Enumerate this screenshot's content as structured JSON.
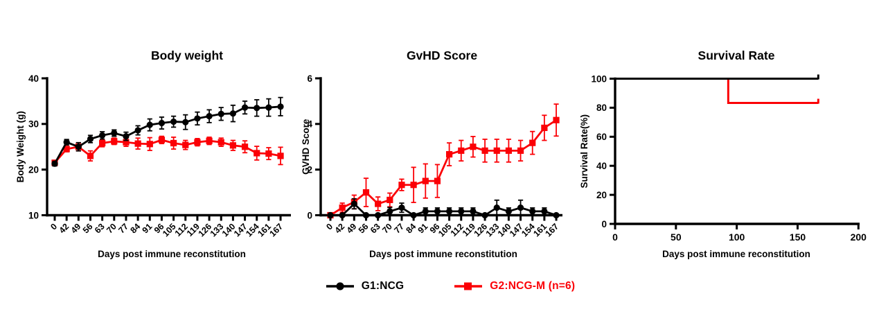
{
  "legend": {
    "items": [
      {
        "label": "G1:NCG",
        "color": "#000000",
        "marker": "circle"
      },
      {
        "label": "G2:NCG-M (n=6)",
        "color": "#fb0006",
        "marker": "square"
      }
    ]
  },
  "colors": {
    "black": "#000000",
    "red": "#fb0006",
    "background": "#ffffff"
  },
  "chart_data": [
    {
      "type": "line",
      "title": "Body weight",
      "xlabel": "Days post immune reconstitution",
      "ylabel": "Body Weight (g)",
      "ylim": [
        10,
        40
      ],
      "yticks": [
        10,
        20,
        30,
        40
      ],
      "grid": false,
      "categories": [
        0,
        42,
        49,
        56,
        63,
        70,
        77,
        84,
        91,
        96,
        105,
        112,
        119,
        126,
        133,
        140,
        147,
        154,
        161,
        167
      ],
      "series": [
        {
          "name": "G1:NCG",
          "color": "#000000",
          "marker": "circle",
          "values": [
            21.3,
            26.0,
            25.0,
            26.7,
            27.5,
            28.0,
            27.3,
            28.6,
            29.8,
            30.2,
            30.5,
            30.4,
            31.2,
            31.7,
            32.2,
            32.3,
            33.6,
            33.5,
            33.6,
            33.8
          ],
          "errors": [
            0.5,
            0.6,
            0.9,
            0.8,
            0.8,
            0.7,
            0.9,
            1.0,
            1.3,
            1.3,
            1.2,
            1.6,
            1.4,
            1.4,
            1.4,
            1.8,
            1.4,
            1.8,
            1.9,
            2.0
          ]
        },
        {
          "name": "G2:NCG-M (n=6)",
          "color": "#fb0006",
          "marker": "square",
          "values": [
            21.5,
            24.5,
            25.0,
            23.0,
            25.8,
            26.2,
            26.0,
            25.7,
            25.6,
            26.5,
            25.8,
            25.4,
            26.0,
            26.3,
            26.0,
            25.3,
            25.0,
            23.6,
            23.5,
            23.0
          ],
          "errors": [
            0.4,
            0.6,
            0.9,
            1.1,
            0.8,
            0.7,
            0.9,
            1.2,
            1.4,
            0.8,
            1.3,
            1.0,
            0.8,
            0.8,
            0.9,
            1.1,
            1.3,
            1.5,
            1.3,
            1.9
          ]
        }
      ]
    },
    {
      "type": "line",
      "title": "GvHD Score",
      "xlabel": "Days post immune reconstitution",
      "ylabel": "GVHD Score",
      "ylim": [
        0,
        6
      ],
      "yticks": [
        0,
        2,
        4,
        6
      ],
      "grid": false,
      "categories": [
        0,
        42,
        49,
        56,
        63,
        70,
        77,
        84,
        91,
        96,
        105,
        112,
        119,
        126,
        133,
        140,
        147,
        154,
        161,
        167
      ],
      "series": [
        {
          "name": "G1:NCG",
          "color": "#000000",
          "marker": "circle",
          "values": [
            0,
            0,
            0.5,
            0,
            0,
            0.17,
            0.33,
            0,
            0.17,
            0.17,
            0.17,
            0.17,
            0.17,
            0,
            0.33,
            0.17,
            0.33,
            0.17,
            0.17,
            0
          ],
          "errors": [
            0,
            0,
            0.22,
            0,
            0,
            0.17,
            0.2,
            0.05,
            0.15,
            0.15,
            0.15,
            0.15,
            0.15,
            0,
            0.33,
            0.15,
            0.33,
            0.15,
            0.15,
            0.05
          ]
        },
        {
          "name": "G2:NCG-M (n=6)",
          "color": "#fb0006",
          "marker": "square",
          "values": [
            0,
            0.33,
            0.58,
            1.0,
            0.5,
            0.67,
            1.33,
            1.33,
            1.5,
            1.5,
            2.67,
            2.83,
            3.0,
            2.83,
            2.83,
            2.83,
            2.83,
            3.17,
            3.83,
            4.17
          ],
          "errors": [
            0,
            0.2,
            0.3,
            0.62,
            0.3,
            0.3,
            0.25,
            0.77,
            0.75,
            0.72,
            0.5,
            0.45,
            0.45,
            0.5,
            0.5,
            0.5,
            0.45,
            0.5,
            0.55,
            0.7
          ]
        }
      ]
    },
    {
      "type": "step",
      "title": "Survival Rate",
      "xlabel": "Days post immune reconstitution",
      "ylabel": "Survival Rate(%)",
      "ylim": [
        0,
        100
      ],
      "yticks": [
        0,
        20,
        40,
        60,
        80,
        100
      ],
      "xlim": [
        0,
        200
      ],
      "xticks": [
        0,
        50,
        100,
        150,
        200
      ],
      "grid": false,
      "series": [
        {
          "name": "G1:NCG",
          "color": "#000000",
          "points": [
            [
              0,
              100
            ],
            [
              167,
              100
            ]
          ],
          "censor_at_end": true
        },
        {
          "name": "G2:NCG-M (n=6)",
          "color": "#fb0006",
          "points": [
            [
              0,
              100
            ],
            [
              93,
              100
            ],
            [
              93,
              83.3
            ],
            [
              167,
              83.3
            ]
          ],
          "censor_at_end": true
        }
      ]
    }
  ]
}
